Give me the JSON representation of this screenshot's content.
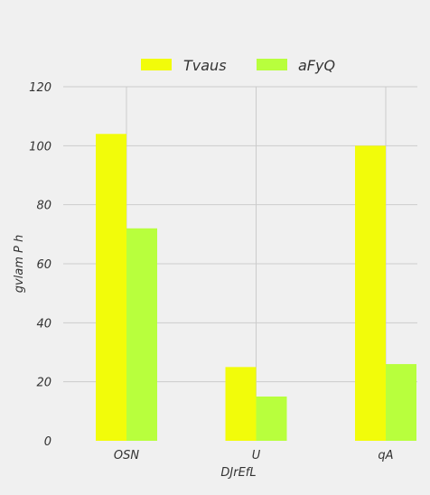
{
  "chart_data": {
    "type": "bar",
    "title": "",
    "xlabel": "DJrEfL",
    "ylabel": "gvlam P h",
    "categories": [
      "OSN",
      "U",
      "qA"
    ],
    "series": [
      {
        "name": "Tvaus",
        "values": [
          104,
          25,
          100
        ],
        "color": "#f2fc0a"
      },
      {
        "name": "aFyQ",
        "values": [
          72,
          15,
          26
        ],
        "color": "#b8ff3d"
      }
    ],
    "ylim": [
      0,
      120
    ],
    "yticks": [
      0,
      20,
      40,
      60,
      80,
      100,
      120
    ],
    "grid": true,
    "legend_position": "top-center"
  },
  "colors": {
    "background": "#f0f0f0",
    "grid": "#cbcbcb",
    "text": "#333333"
  }
}
